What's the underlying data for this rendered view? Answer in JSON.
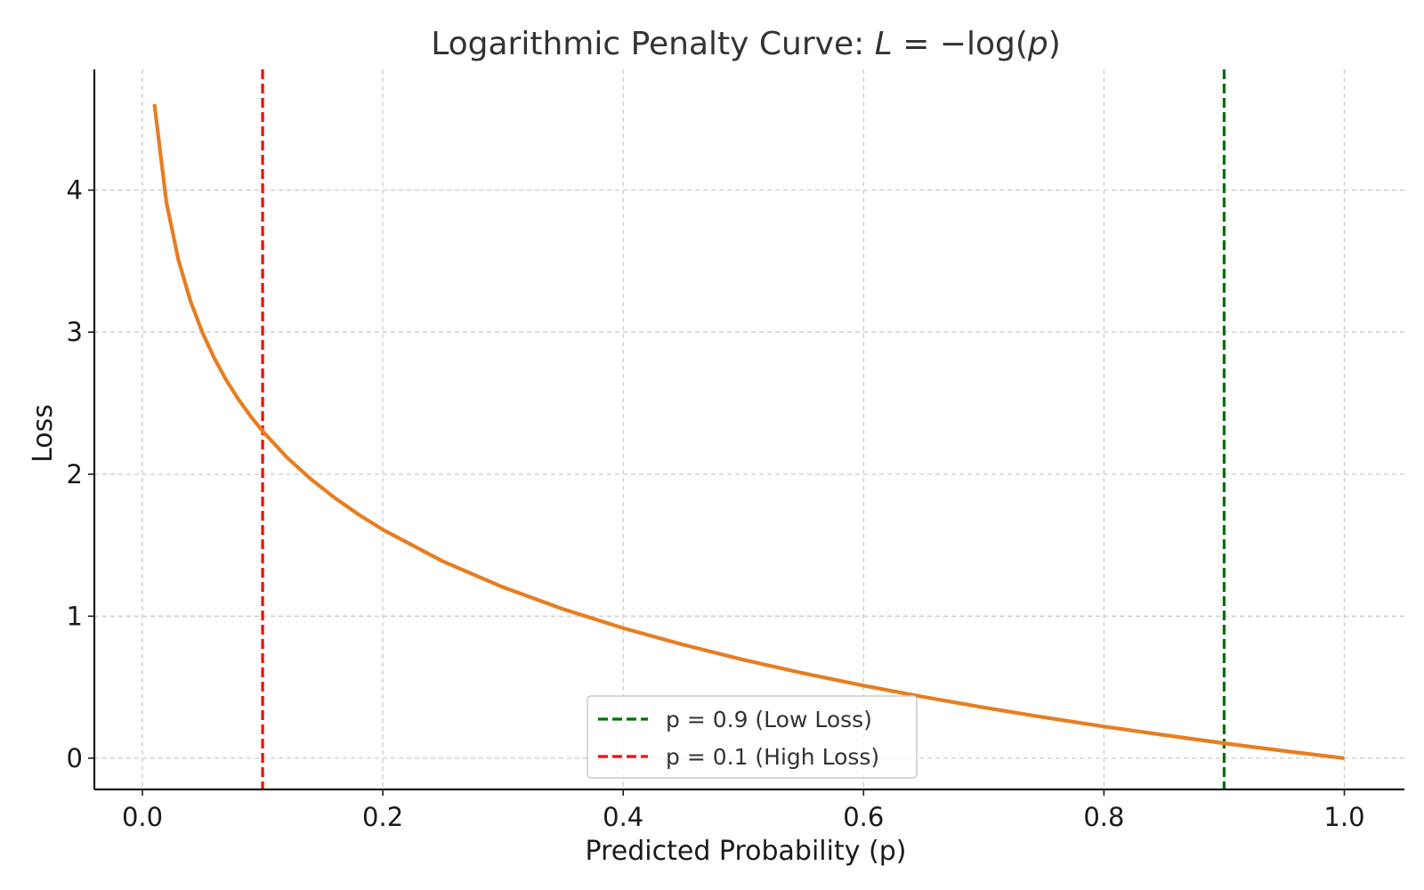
{
  "chart_data": {
    "type": "line",
    "title": "Logarithmic Penalty Curve: ",
    "title_math": {
      "lhs": "L",
      "eq": " = −log(",
      "var": "p",
      "close": ")"
    },
    "xlabel": "Predicted Probability (p)",
    "ylabel": "Loss",
    "xlim": [
      -0.04,
      1.05
    ],
    "ylim": [
      -0.22,
      4.85
    ],
    "x_ticks": [
      0.0,
      0.2,
      0.4,
      0.6,
      0.8,
      1.0
    ],
    "x_tick_labels": [
      "0.0",
      "0.2",
      "0.4",
      "0.6",
      "0.8",
      "1.0"
    ],
    "y_ticks": [
      0,
      1,
      2,
      3,
      4
    ],
    "y_tick_labels": [
      "0",
      "1",
      "2",
      "3",
      "4"
    ],
    "grid": true,
    "series": [
      {
        "function": "-log(p)",
        "x": [
          0.01,
          0.02,
          0.03,
          0.04,
          0.05,
          0.06,
          0.07,
          0.08,
          0.09,
          0.1,
          0.12,
          0.14,
          0.16,
          0.18,
          0.2,
          0.25,
          0.3,
          0.35,
          0.4,
          0.45,
          0.5,
          0.55,
          0.6,
          0.65,
          0.7,
          0.75,
          0.8,
          0.85,
          0.9,
          0.95,
          1.0
        ],
        "y": [
          4.605,
          3.912,
          3.507,
          3.219,
          2.996,
          2.813,
          2.659,
          2.526,
          2.408,
          2.303,
          2.12,
          1.966,
          1.833,
          1.715,
          1.609,
          1.386,
          1.204,
          1.05,
          0.916,
          0.799,
          0.693,
          0.598,
          0.511,
          0.431,
          0.357,
          0.288,
          0.223,
          0.163,
          0.105,
          0.051,
          0.0
        ],
        "color": "#e67e22"
      }
    ],
    "reference_lines": [
      {
        "x": 0.9,
        "label": "p = 0.9 (Low Loss)",
        "color": "#007000",
        "style": "dashed"
      },
      {
        "x": 0.1,
        "label": "p = 0.1 (High Loss)",
        "color": "#ff0000",
        "style": "dashed"
      }
    ],
    "legend": {
      "placement": "bottom-center",
      "entries": [
        {
          "label": "p = 0.9 (Low Loss)",
          "color": "#007000"
        },
        {
          "label": "p = 0.1 (High Loss)",
          "color": "#ff0000"
        }
      ]
    }
  }
}
